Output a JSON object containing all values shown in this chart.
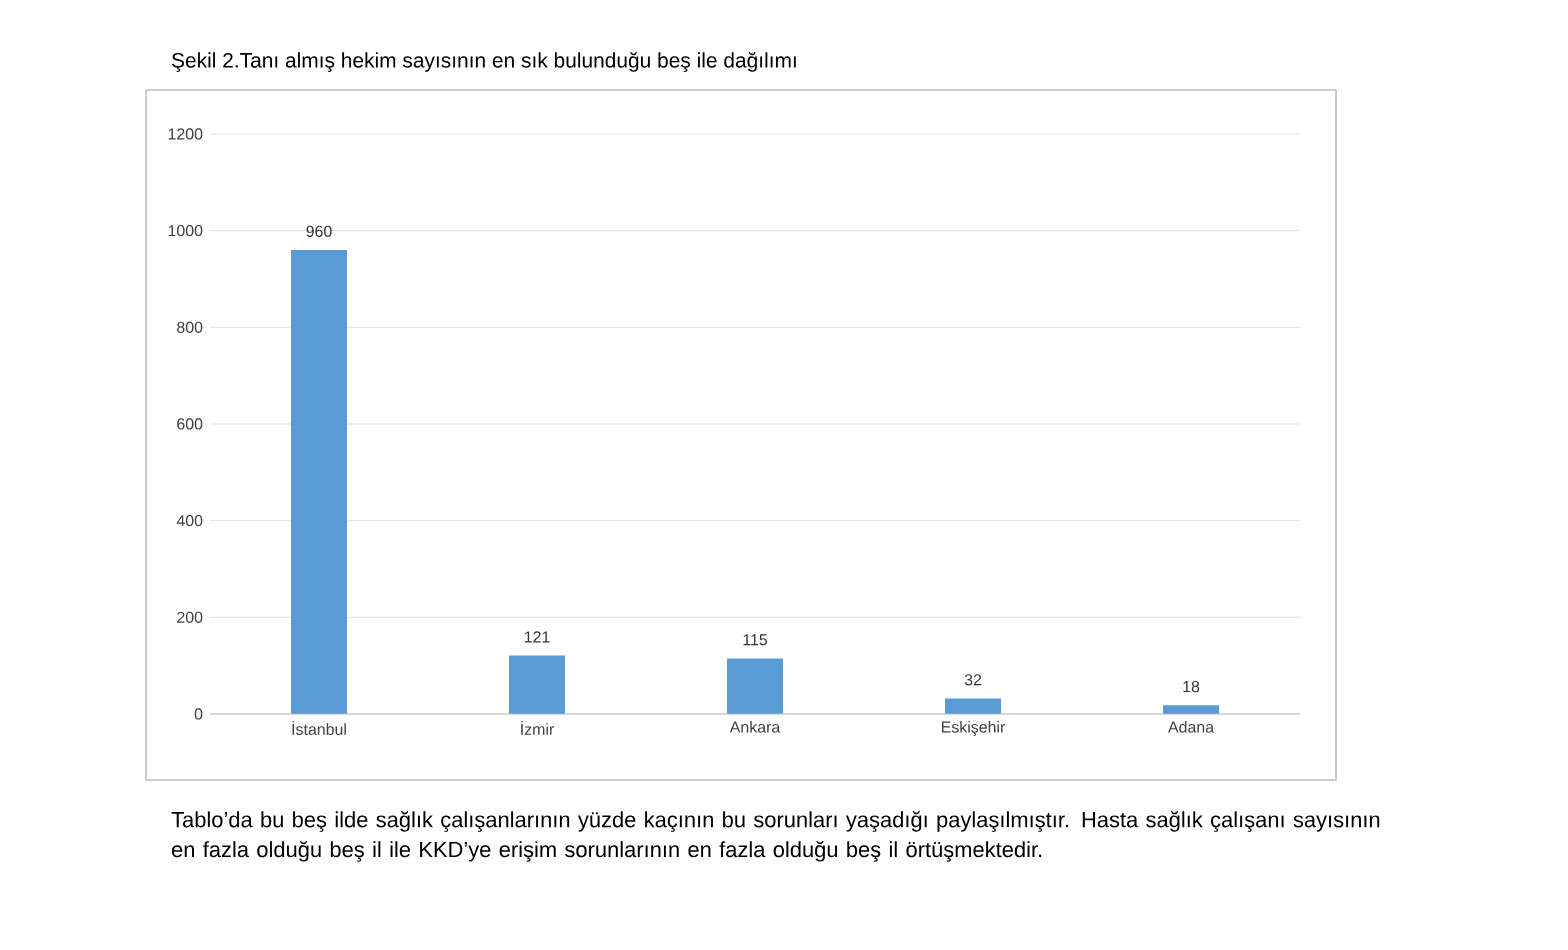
{
  "chart_data": {
    "type": "bar",
    "title": "Şekil 2.Tanı almış hekim sayısının en sık bulunduğu beş ile dağılımı",
    "categories": [
      "İstanbul",
      "İzmir",
      "Ankara",
      "Eskişehir",
      "Adana"
    ],
    "values": [
      960,
      121,
      115,
      32,
      18
    ],
    "color": "#5b9bd5",
    "ylim": [
      0,
      1200
    ],
    "yticks": [
      0,
      200,
      400,
      600,
      800,
      1000,
      1200
    ],
    "grid": "y",
    "data_labels": true,
    "annotations": [
      "Tablo’da bu beş ilde sağlık çalışanlarının yüzde kaçının bu sorunları yaşadığı paylaşılmıştır. Hasta sağlık çalışanı sayısının en fazla olduğu beş il ile KKD’ye erişim sorunlarının en fazla olduğu beş il örtüşmektedir."
    ]
  }
}
